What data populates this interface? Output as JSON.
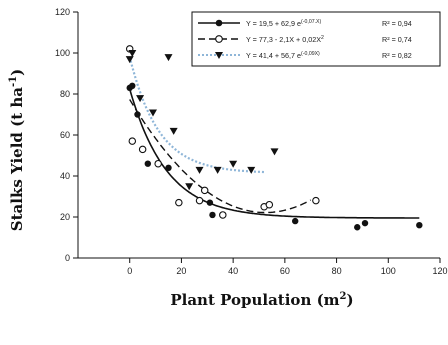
{
  "chart_data": {
    "type": "scatter",
    "xlabel": "Plant Population (m",
    "xlabel_sup": "2",
    "xlabel_end": ")",
    "ylabel": "Stalks Yield (t ha",
    "ylabel_sup": "-1",
    "ylabel_end": ")",
    "xlim": [
      -20,
      120
    ],
    "ylim": [
      0,
      120
    ],
    "x_ticks": [
      0,
      20,
      40,
      60,
      80,
      100,
      120
    ],
    "y_ticks": [
      0,
      20,
      40,
      60,
      80,
      100,
      120
    ],
    "legend_position": "top-right",
    "series": [
      {
        "marker": "filled-circle",
        "line_style": "solid",
        "color": "#111111",
        "legend": {
          "eq": "Y = 19,5 + 62,9 e",
          "sup": "(-0,07.X)",
          "r2": "R² = 0,94"
        },
        "curve": {
          "kind": "exp",
          "a": 19.5,
          "b": 62.9,
          "k": -0.07,
          "xmax": 112
        },
        "points": [
          [
            0,
            83
          ],
          [
            1,
            84
          ],
          [
            3,
            70
          ],
          [
            7,
            46
          ],
          [
            15,
            44
          ],
          [
            31,
            27
          ],
          [
            32,
            21
          ],
          [
            64,
            18
          ],
          [
            88,
            15
          ],
          [
            91,
            17
          ],
          [
            112,
            16
          ]
        ]
      },
      {
        "marker": "open-circle",
        "line_style": "dashed",
        "color": "#111111",
        "legend": {
          "eq": "Y = 77,3 - 2,1X + 0,02X",
          "sup": "2",
          "r2": "R² = 0,74"
        },
        "curve": {
          "kind": "poly",
          "a": 77.3,
          "b": -2.1,
          "c": 0.02,
          "xmax": 70
        },
        "points": [
          [
            0,
            102
          ],
          [
            1,
            57
          ],
          [
            5,
            53
          ],
          [
            11,
            46
          ],
          [
            19,
            27
          ],
          [
            27,
            28
          ],
          [
            29,
            33
          ],
          [
            36,
            21
          ],
          [
            52,
            25
          ],
          [
            54,
            26
          ],
          [
            72,
            28
          ]
        ]
      },
      {
        "marker": "filled-triangle",
        "line_style": "dotted",
        "color": "#111111",
        "legend": {
          "eq": "Y = 41,4 + 56,7 e",
          "sup": "(-0,09X)",
          "r2": "R² = 0,82"
        },
        "curve": {
          "kind": "exp",
          "a": 41.4,
          "b": 56.7,
          "k": -0.09,
          "xmax": 52
        },
        "points": [
          [
            0,
            97
          ],
          [
            1,
            100
          ],
          [
            4,
            78
          ],
          [
            9,
            71
          ],
          [
            15,
            98
          ],
          [
            17,
            62
          ],
          [
            23,
            35
          ],
          [
            27,
            43
          ],
          [
            34,
            43
          ],
          [
            40,
            46
          ],
          [
            47,
            43
          ],
          [
            56,
            52
          ]
        ]
      }
    ]
  }
}
